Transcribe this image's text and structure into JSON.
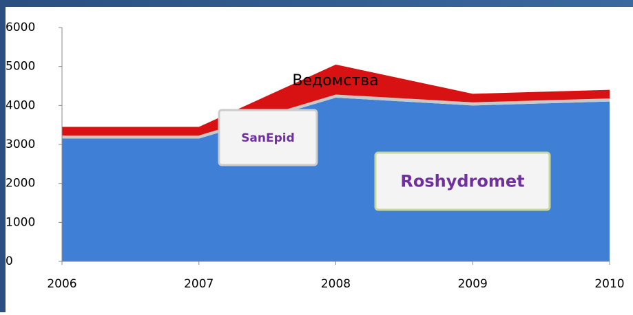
{
  "chart_data": {
    "type": "stacked_area",
    "x": [
      2006,
      2007,
      2008,
      2009,
      2010
    ],
    "xlim": [
      2006,
      2010
    ],
    "xticks": [
      2006,
      2007,
      2008,
      2009,
      2010
    ],
    "ylim": [
      0,
      6000
    ],
    "yticks": [
      0,
      1000,
      2000,
      3000,
      4000,
      5000,
      6000
    ],
    "series": [
      {
        "name": "Roshydromet",
        "color": "#3f7fd6",
        "values": [
          3150,
          3150,
          4200,
          4000,
          4100
        ]
      },
      {
        "name": "SanEpid",
        "color": "#c8c8c8",
        "values": [
          80,
          80,
          80,
          80,
          80
        ]
      },
      {
        "name": "Ведомства",
        "color": "#d81212",
        "values": [
          220,
          220,
          770,
          220,
          220
        ]
      }
    ]
  }
}
